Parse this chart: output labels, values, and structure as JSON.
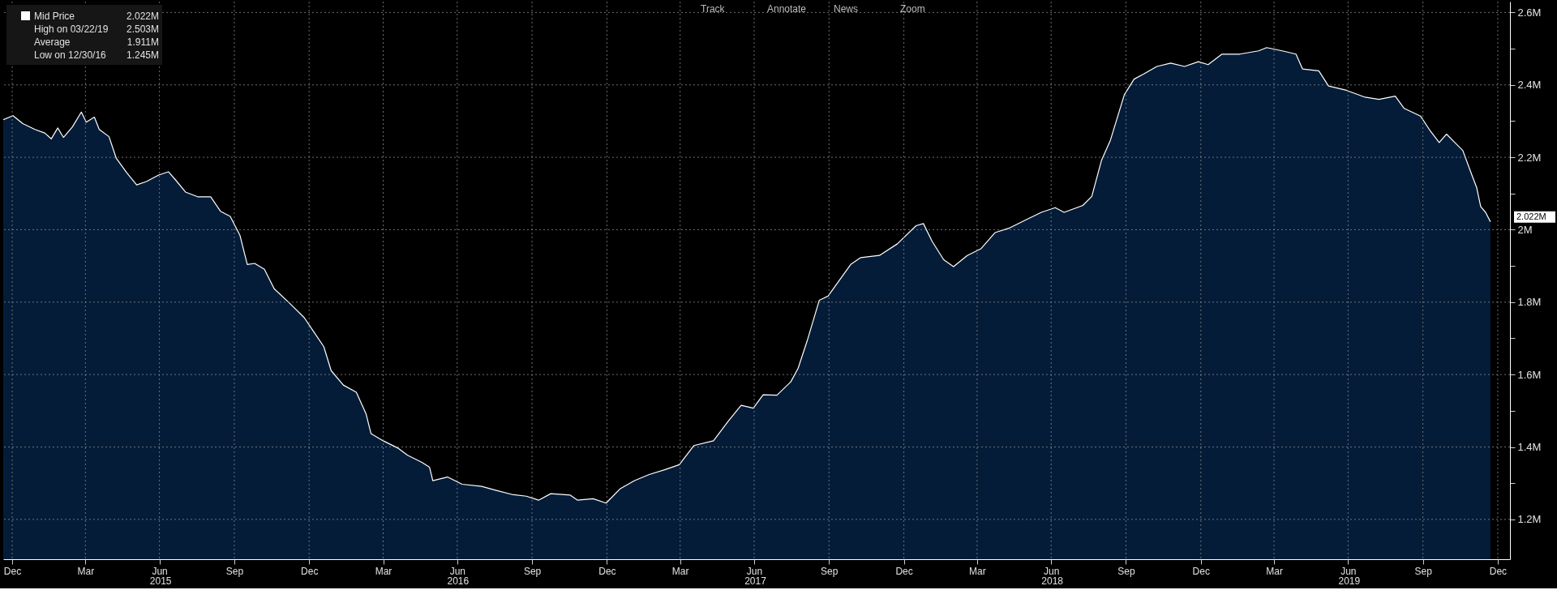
{
  "chart_data": {
    "type": "area",
    "legend": "top left",
    "grid": true,
    "x": [
      "2014-12-20",
      "2015-01-01",
      "2015-01-13",
      "2015-01-28",
      "2015-02-09",
      "2015-02-17",
      "2015-02-25",
      "2015-03-04",
      "2015-03-15",
      "2015-03-26",
      "2015-04-01",
      "2015-04-11",
      "2015-04-17",
      "2015-04-29",
      "2015-05-08",
      "2015-05-21",
      "2015-06-02",
      "2015-06-14",
      "2015-06-29",
      "2015-07-11",
      "2015-07-20",
      "2015-08-01",
      "2015-08-16",
      "2015-09-01",
      "2015-09-13",
      "2015-09-25",
      "2015-10-07",
      "2015-10-16",
      "2015-10-25",
      "2015-11-06",
      "2015-11-18",
      "2015-12-07",
      "2015-12-25",
      "2016-01-06",
      "2016-01-18",
      "2016-01-27",
      "2016-02-11",
      "2016-02-27",
      "2016-03-10",
      "2016-03-16",
      "2016-03-31",
      "2016-04-18",
      "2016-04-30",
      "2016-05-18",
      "2016-05-27",
      "2016-05-31",
      "2016-06-18",
      "2016-07-06",
      "2016-07-30",
      "2016-08-17",
      "2016-09-05",
      "2016-09-23",
      "2016-10-08",
      "2016-10-23",
      "2016-11-16",
      "2016-11-25",
      "2016-12-14",
      "2016-12-30",
      "2017-01-16",
      "2017-02-03",
      "2017-02-21",
      "2017-03-12",
      "2017-03-30",
      "2017-04-17",
      "2017-05-11",
      "2017-05-29",
      "2017-06-14",
      "2017-06-29",
      "2017-07-11",
      "2017-07-28",
      "2017-08-14",
      "2017-08-23",
      "2017-09-03",
      "2017-09-18",
      "2017-09-29",
      "2017-10-27",
      "2017-11-08",
      "2017-12-01",
      "2017-12-23",
      "2018-01-15",
      "2018-01-24",
      "2018-02-04",
      "2018-02-18",
      "2018-03-02",
      "2018-03-19",
      "2018-04-05",
      "2018-04-22",
      "2018-05-09",
      "2018-05-26",
      "2018-06-18",
      "2018-07-05",
      "2018-07-16",
      "2018-08-08",
      "2018-08-19",
      "2018-08-31",
      "2018-09-11",
      "2018-09-28",
      "2018-10-10",
      "2018-10-21",
      "2018-11-07",
      "2018-11-24",
      "2018-12-11",
      "2018-12-28",
      "2019-01-09",
      "2019-01-26",
      "2019-02-17",
      "2019-03-12",
      "2019-03-22",
      "2019-04-10",
      "2019-04-27",
      "2019-05-05",
      "2019-05-25",
      "2019-06-06",
      "2019-06-28",
      "2019-07-21",
      "2019-08-07",
      "2019-08-27",
      "2019-09-07",
      "2019-09-27",
      "2019-10-09",
      "2019-10-20",
      "2019-10-29",
      "2019-11-09",
      "2019-11-18",
      "2019-11-29",
      "2019-12-05",
      "2019-12-10",
      "2019-12-16",
      "2019-12-22"
    ],
    "series": [
      {
        "name": "Mid Price",
        "color": "#ffffff",
        "values": [
          2.304,
          2.315,
          2.293,
          2.277,
          2.267,
          2.251,
          2.281,
          2.255,
          2.284,
          2.325,
          2.297,
          2.311,
          2.277,
          2.257,
          2.197,
          2.157,
          2.124,
          2.133,
          2.151,
          2.16,
          2.137,
          2.104,
          2.091,
          2.091,
          2.051,
          2.037,
          1.984,
          1.904,
          1.907,
          1.891,
          1.837,
          1.797,
          1.757,
          1.717,
          1.677,
          1.611,
          1.571,
          1.551,
          1.491,
          1.437,
          1.417,
          1.397,
          1.377,
          1.357,
          1.344,
          1.307,
          1.317,
          1.297,
          1.291,
          1.28,
          1.269,
          1.264,
          1.253,
          1.271,
          1.267,
          1.253,
          1.257,
          1.245,
          1.284,
          1.307,
          1.324,
          1.337,
          1.351,
          1.404,
          1.417,
          1.471,
          1.515,
          1.507,
          1.544,
          1.543,
          1.58,
          1.617,
          1.692,
          1.805,
          1.817,
          1.905,
          1.923,
          1.929,
          1.961,
          2.011,
          2.017,
          1.967,
          1.917,
          1.898,
          1.929,
          1.948,
          1.992,
          2.004,
          2.023,
          2.048,
          2.061,
          2.048,
          2.067,
          2.092,
          2.192,
          2.248,
          2.373,
          2.416,
          2.429,
          2.451,
          2.46,
          2.451,
          2.464,
          2.456,
          2.485,
          2.485,
          2.494,
          2.503,
          2.494,
          2.485,
          2.444,
          2.439,
          2.397,
          2.385,
          2.366,
          2.36,
          2.369,
          2.335,
          2.314,
          2.273,
          2.241,
          2.264,
          2.239,
          2.219,
          2.152,
          2.117,
          2.064,
          2.048,
          2.022
        ]
      }
    ],
    "xlim": [
      "2014-12-20",
      "2020-01-15"
    ],
    "xticks": [
      {
        "value": "2014-12-31",
        "label": "Dec"
      },
      {
        "value": "2015-03-31",
        "label": "Mar"
      },
      {
        "value": "2015-06-30",
        "label": "Jun"
      },
      {
        "value": "2015-09-30",
        "label": "Sep"
      },
      {
        "value": "2015-12-31",
        "label": "Dec"
      },
      {
        "value": "2016-03-31",
        "label": "Mar"
      },
      {
        "value": "2016-06-30",
        "label": "Jun"
      },
      {
        "value": "2016-09-30",
        "label": "Sep"
      },
      {
        "value": "2016-12-31",
        "label": "Dec"
      },
      {
        "value": "2017-03-31",
        "label": "Mar"
      },
      {
        "value": "2017-06-30",
        "label": "Jun"
      },
      {
        "value": "2017-09-30",
        "label": "Sep"
      },
      {
        "value": "2017-12-31",
        "label": "Dec"
      },
      {
        "value": "2018-03-31",
        "label": "Mar"
      },
      {
        "value": "2018-06-30",
        "label": "Jun"
      },
      {
        "value": "2018-09-30",
        "label": "Sep"
      },
      {
        "value": "2018-12-31",
        "label": "Dec"
      },
      {
        "value": "2019-03-31",
        "label": "Mar"
      },
      {
        "value": "2019-06-30",
        "label": "Jun"
      },
      {
        "value": "2019-09-30",
        "label": "Sep"
      },
      {
        "value": "2019-12-31",
        "label": "Dec"
      }
    ],
    "ylim": [
      1.09,
      2.63
    ],
    "yticks": [
      {
        "value": 1.2,
        "label": "1.2M"
      },
      {
        "value": 1.3,
        "label": null
      },
      {
        "value": 1.4,
        "label": "1.4M"
      },
      {
        "value": 1.5,
        "label": null
      },
      {
        "value": 1.6,
        "label": "1.6M"
      },
      {
        "value": 1.7,
        "label": null
      },
      {
        "value": 1.8,
        "label": "1.8M"
      },
      {
        "value": 1.9,
        "label": null
      },
      {
        "value": 2.0,
        "label": "2M"
      },
      {
        "value": 2.1,
        "label": null
      },
      {
        "value": 2.2,
        "label": "2.2M"
      },
      {
        "value": 2.3,
        "label": null
      },
      {
        "value": 2.4,
        "label": "2.4M"
      },
      {
        "value": 2.5,
        "label": null
      },
      {
        "value": 2.6,
        "label": "2.6M"
      }
    ],
    "annotations": [
      "2.022M",
      "High on 03/22/19",
      "2.503M",
      "Average",
      "1.911M",
      "Low on 12/30/16",
      "1.245M",
      "Track",
      "Annotate",
      "News",
      "Zoom",
      "2.022M",
      "2015",
      "2016",
      "2017",
      "2018",
      "2019"
    ]
  }
}
